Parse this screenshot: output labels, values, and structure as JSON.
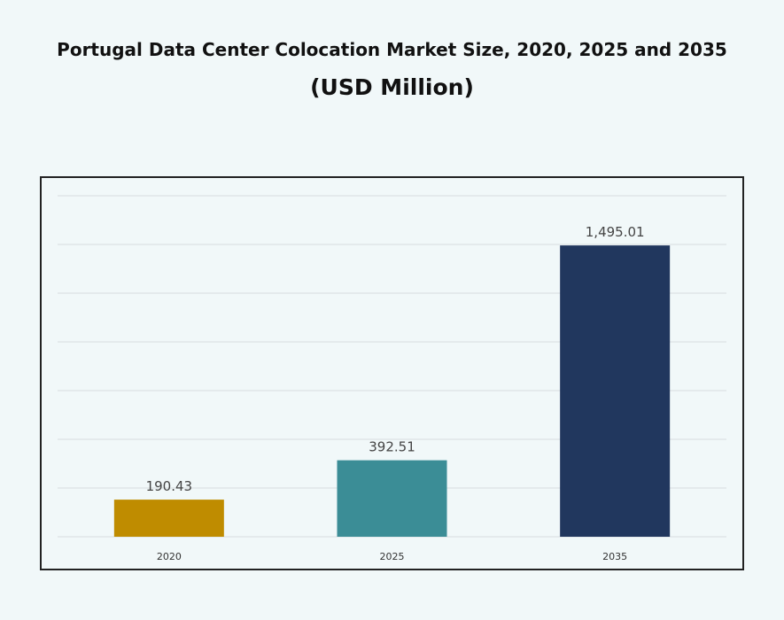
{
  "chart_data": {
    "type": "bar",
    "title": "Portugal Data Center Colocation Market Size, 2020, 2025 and 2035",
    "subtitle": "(USD Million)",
    "categories": [
      "2020",
      "2025",
      "2035"
    ],
    "values": [
      190.43,
      392.51,
      1495.01
    ],
    "value_labels": [
      "190.43",
      "392.51",
      "1,495.01"
    ],
    "colors": [
      "#bf8c00",
      "#3b8d96",
      "#21375e"
    ],
    "xlabel": "",
    "ylabel": "",
    "ylim": [
      0,
      1750
    ],
    "grid": true,
    "y_axis_labels_shown": false,
    "legend": "none"
  }
}
